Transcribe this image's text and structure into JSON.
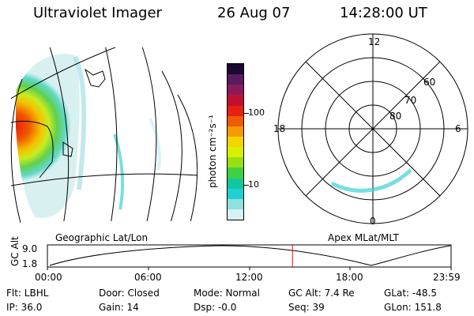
{
  "header": {
    "title": "Ultraviolet Imager",
    "date": "26 Aug 07",
    "time": "14:28:00 UT"
  },
  "colorbar": {
    "label": "photon cm⁻²s⁻¹",
    "ticks": [
      "100",
      "10"
    ],
    "colors": [
      "#1a0a30",
      "#5a1a60",
      "#8a1a5a",
      "#c01030",
      "#e82010",
      "#f05a00",
      "#f59a00",
      "#f5d400",
      "#d8f000",
      "#9ae010",
      "#40d040",
      "#10c8a0",
      "#20d0d0",
      "#90e0e0",
      "#d8f0f0"
    ]
  },
  "left_map": {
    "caption": "Geographic Lat/Lon"
  },
  "right_map": {
    "caption": "Apex MLat/MLT",
    "mlt_labels": {
      "top": "12",
      "left": "18",
      "right": "6",
      "bottom": "0"
    },
    "lat_labels": [
      "60",
      "70",
      "80"
    ]
  },
  "altitude_plot": {
    "ylabel": "GC Alt",
    "ymax_label": "9.0",
    "ymin_label": "1.8",
    "x_ticks": [
      "00:00",
      "06:00",
      "12:00",
      "18:00",
      "23:59"
    ],
    "current_fraction": 0.607
  },
  "status": {
    "flt": "Flt: LBHL",
    "ip": "IP: 36.0",
    "door": "Door: Closed",
    "gain": "Gain: 14",
    "mode": "Mode: Normal",
    "dsp": "Dsp:    -0.0",
    "gcalt": "GC Alt: 7.4 Re",
    "seq": "Seq: 39",
    "glat": "GLat: -48.5",
    "glon": "GLon: 151.8"
  },
  "colors": {
    "marker": "#ff0000",
    "line": "#000000"
  }
}
